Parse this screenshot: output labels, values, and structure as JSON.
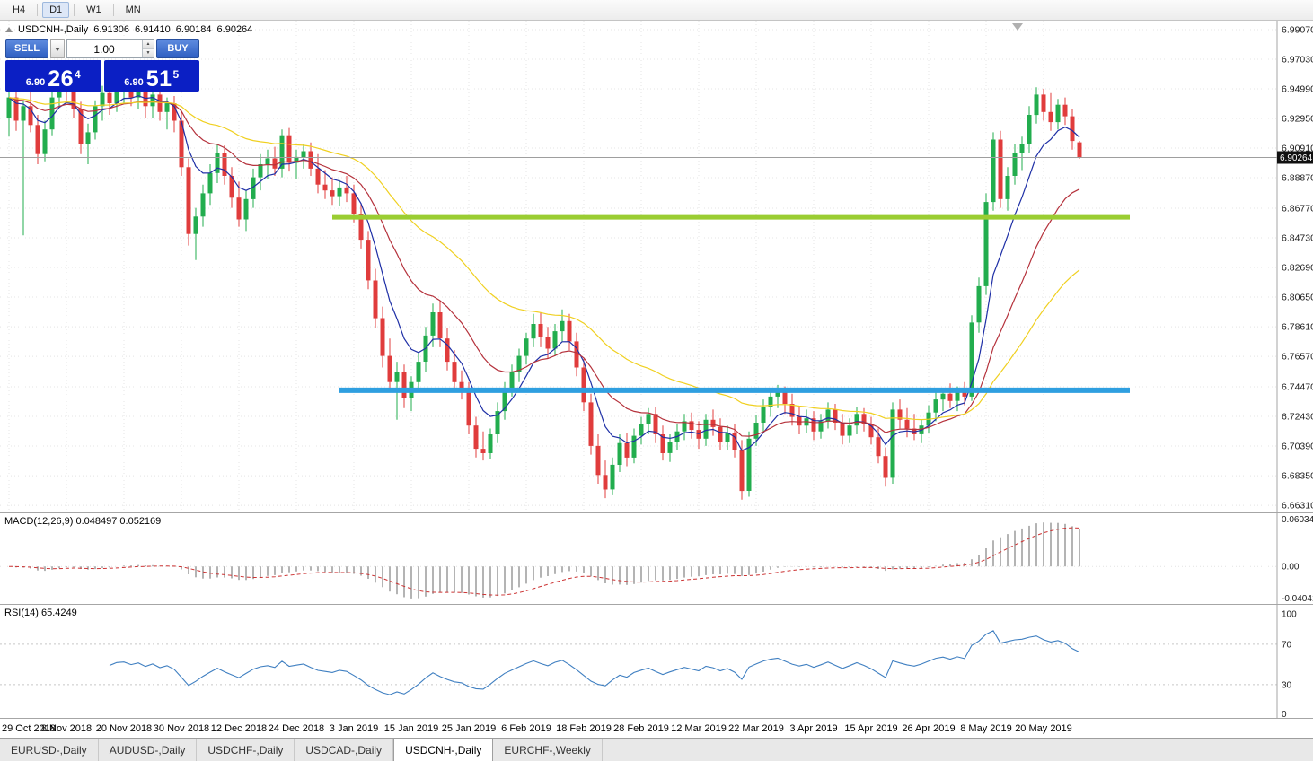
{
  "toolbar": {
    "periods": [
      {
        "label": "H4",
        "active": false
      },
      {
        "label": "D1",
        "active": true
      },
      {
        "label": "W1",
        "active": false
      },
      {
        "label": "MN",
        "active": false
      }
    ]
  },
  "chart_header": {
    "symbol_period": "USDCNH-,Daily",
    "open": "6.91306",
    "high": "6.91410",
    "low": "6.90184",
    "close": "6.90264"
  },
  "trade_panel": {
    "sell_label": "SELL",
    "buy_label": "BUY",
    "volume": "1.00",
    "spinner_up": "▲",
    "spinner_down": "▼",
    "sell_price_small": "6.90",
    "sell_price_big": "26",
    "sell_price_sup": "4",
    "buy_price_small": "6.90",
    "buy_price_big": "51",
    "buy_price_sup": "5",
    "panel_blue": "#0b1fc4",
    "button_blue": "#2f5fc2"
  },
  "price_axis_labels": [
    "6.99070",
    "6.97030",
    "6.94990",
    "6.92950",
    "6.90910",
    "6.88870",
    "6.86770",
    "6.84730",
    "6.82690",
    "6.80650",
    "6.78610",
    "6.76570",
    "6.74470",
    "6.72430",
    "6.70390",
    "6.68350",
    "6.66310"
  ],
  "current_price_label": "6.90264",
  "indicator_macd": {
    "label": "MACD(12,26,9) 0.048497 0.052169",
    "axis_labels": [
      "0.060342",
      "0.00",
      "-0.040415"
    ]
  },
  "indicator_rsi": {
    "label": "RSI(14) 65.4249",
    "axis_labels": [
      "100",
      "70",
      "30",
      "0"
    ]
  },
  "time_axis_labels": [
    "29 Oct 2018",
    "8 Nov 2018",
    "20 Nov 2018",
    "30 Nov 2018",
    "12 Dec 2018",
    "24 Dec 2018",
    "3 Jan 2019",
    "15 Jan 2019",
    "25 Jan 2019",
    "6 Feb 2019",
    "18 Feb 2019",
    "28 Feb 2019",
    "12 Mar 2019",
    "22 Mar 2019",
    "3 Apr 2019",
    "15 Apr 2019",
    "26 Apr 2019",
    "8 May 2019",
    "20 May 2019"
  ],
  "tabs": [
    {
      "label": "EURUSD-,Daily",
      "active": false
    },
    {
      "label": "AUDUSD-,Daily",
      "active": false
    },
    {
      "label": "USDCHF-,Daily",
      "active": false
    },
    {
      "label": "USDCAD-,Daily",
      "active": false
    },
    {
      "label": "USDCNH-,Daily",
      "active": true
    },
    {
      "label": "EURCHF-,Weekly",
      "active": false
    }
  ],
  "chart_data": {
    "type": "candlestick",
    "symbol": "USDCNH",
    "timeframe": "Daily",
    "x_label_every_n_bars": 8,
    "price_max": 6.9969,
    "price_min": 6.6582,
    "current_price": 6.90264,
    "candles": [
      [
        6.93,
        6.951,
        6.917,
        6.944
      ],
      [
        6.944,
        6.949,
        6.921,
        6.928
      ],
      [
        6.928,
        6.942,
        6.849,
        6.938
      ],
      [
        6.938,
        6.955,
        6.92,
        6.925
      ],
      [
        6.925,
        6.932,
        6.898,
        6.905
      ],
      [
        6.905,
        6.928,
        6.9,
        6.922
      ],
      [
        6.922,
        6.948,
        6.918,
        6.944
      ],
      [
        6.944,
        6.962,
        6.938,
        6.956
      ],
      [
        6.956,
        6.963,
        6.942,
        6.95
      ],
      [
        6.95,
        6.957,
        6.93,
        6.936
      ],
      [
        6.936,
        6.941,
        6.905,
        6.912
      ],
      [
        6.912,
        6.926,
        6.898,
        6.92
      ],
      [
        6.92,
        6.942,
        6.915,
        6.938
      ],
      [
        6.938,
        6.952,
        6.928,
        6.947
      ],
      [
        6.947,
        6.953,
        6.932,
        6.94
      ],
      [
        6.94,
        6.956,
        6.934,
        6.951
      ],
      [
        6.951,
        6.959,
        6.94,
        6.953
      ],
      [
        6.953,
        6.958,
        6.938,
        6.944
      ],
      [
        6.944,
        6.956,
        6.936,
        6.95
      ],
      [
        6.95,
        6.954,
        6.93,
        6.938
      ],
      [
        6.938,
        6.95,
        6.93,
        6.946
      ],
      [
        6.946,
        6.951,
        6.928,
        6.934
      ],
      [
        6.934,
        6.944,
        6.922,
        6.94
      ],
      [
        6.94,
        6.945,
        6.92,
        6.928
      ],
      [
        6.928,
        6.934,
        6.89,
        6.896
      ],
      [
        6.896,
        6.902,
        6.842,
        6.85
      ],
      [
        6.85,
        6.868,
        6.832,
        6.862
      ],
      [
        6.862,
        6.884,
        6.855,
        6.878
      ],
      [
        6.878,
        6.898,
        6.87,
        6.892
      ],
      [
        6.892,
        6.912,
        6.885,
        6.906
      ],
      [
        6.906,
        6.911,
        6.884,
        6.89
      ],
      [
        6.89,
        6.896,
        6.868,
        6.875
      ],
      [
        6.875,
        6.886,
        6.855,
        6.86
      ],
      [
        6.86,
        6.88,
        6.852,
        6.874
      ],
      [
        6.874,
        6.895,
        6.868,
        6.889
      ],
      [
        6.889,
        6.905,
        6.88,
        6.898
      ],
      [
        6.898,
        6.908,
        6.888,
        6.902
      ],
      [
        6.902,
        6.91,
        6.89,
        6.895
      ],
      [
        6.895,
        6.922,
        6.889,
        6.918
      ],
      [
        6.918,
        6.923,
        6.893,
        6.899
      ],
      [
        6.899,
        6.908,
        6.888,
        6.903
      ],
      [
        6.903,
        6.912,
        6.895,
        6.907
      ],
      [
        6.907,
        6.913,
        6.89,
        6.895
      ],
      [
        6.895,
        6.905,
        6.878,
        6.884
      ],
      [
        6.884,
        6.894,
        6.874,
        6.88
      ],
      [
        6.88,
        6.889,
        6.87,
        6.876
      ],
      [
        6.876,
        6.887,
        6.869,
        6.882
      ],
      [
        6.882,
        6.89,
        6.872,
        6.878
      ],
      [
        6.878,
        6.884,
        6.858,
        6.864
      ],
      [
        6.864,
        6.871,
        6.84,
        6.846
      ],
      [
        6.846,
        6.852,
        6.812,
        6.818
      ],
      [
        6.818,
        6.826,
        6.785,
        6.792
      ],
      [
        6.792,
        6.8,
        6.758,
        6.766
      ],
      [
        6.766,
        6.778,
        6.742,
        6.748
      ],
      [
        6.748,
        6.762,
        6.722,
        6.755
      ],
      [
        6.755,
        6.76,
        6.73,
        6.737
      ],
      [
        6.737,
        6.752,
        6.728,
        6.748
      ],
      [
        6.748,
        6.768,
        6.742,
        6.762
      ],
      [
        6.762,
        6.786,
        6.755,
        6.78
      ],
      [
        6.78,
        6.802,
        6.772,
        6.796
      ],
      [
        6.796,
        6.804,
        6.772,
        6.778
      ],
      [
        6.778,
        6.785,
        6.756,
        6.762
      ],
      [
        6.762,
        6.77,
        6.742,
        6.748
      ],
      [
        6.748,
        6.756,
        6.736,
        6.742
      ],
      [
        6.742,
        6.748,
        6.712,
        6.718
      ],
      [
        6.718,
        6.724,
        6.696,
        6.702
      ],
      [
        6.702,
        6.714,
        6.694,
        6.699
      ],
      [
        6.699,
        6.716,
        6.695,
        6.712
      ],
      [
        6.712,
        6.734,
        6.706,
        6.728
      ],
      [
        6.728,
        6.748,
        6.722,
        6.744
      ],
      [
        6.744,
        6.76,
        6.738,
        6.755
      ],
      [
        6.755,
        6.771,
        6.748,
        6.766
      ],
      [
        6.766,
        6.782,
        6.76,
        6.778
      ],
      [
        6.778,
        6.795,
        6.772,
        6.788
      ],
      [
        6.788,
        6.796,
        6.772,
        6.779
      ],
      [
        6.779,
        6.786,
        6.764,
        6.771
      ],
      [
        6.771,
        6.788,
        6.766,
        6.783
      ],
      [
        6.783,
        6.798,
        6.776,
        6.79
      ],
      [
        6.79,
        6.795,
        6.77,
        6.776
      ],
      [
        6.776,
        6.782,
        6.752,
        6.758
      ],
      [
        6.758,
        6.764,
        6.728,
        6.734
      ],
      [
        6.734,
        6.74,
        6.698,
        6.704
      ],
      [
        6.704,
        6.712,
        6.678,
        6.684
      ],
      [
        6.684,
        6.694,
        6.668,
        6.674
      ],
      [
        6.674,
        6.696,
        6.67,
        6.691
      ],
      [
        6.691,
        6.712,
        6.686,
        6.706
      ],
      [
        6.706,
        6.713,
        6.69,
        6.696
      ],
      [
        6.696,
        6.716,
        6.692,
        6.711
      ],
      [
        6.711,
        6.724,
        6.705,
        6.719
      ],
      [
        6.719,
        6.73,
        6.712,
        6.726
      ],
      [
        6.726,
        6.731,
        6.706,
        6.712
      ],
      [
        6.712,
        6.718,
        6.694,
        6.699
      ],
      [
        6.699,
        6.712,
        6.693,
        6.707
      ],
      [
        6.707,
        6.719,
        6.701,
        6.714
      ],
      [
        6.714,
        6.726,
        6.708,
        6.721
      ],
      [
        6.721,
        6.727,
        6.709,
        6.715
      ],
      [
        6.715,
        6.721,
        6.702,
        6.709
      ],
      [
        6.709,
        6.726,
        6.704,
        6.722
      ],
      [
        6.722,
        6.729,
        6.711,
        6.717
      ],
      [
        6.717,
        6.723,
        6.701,
        6.707
      ],
      [
        6.707,
        6.718,
        6.701,
        6.713
      ],
      [
        6.713,
        6.719,
        6.696,
        6.701
      ],
      [
        6.701,
        6.708,
        6.667,
        6.673
      ],
      [
        6.673,
        6.714,
        6.669,
        6.709
      ],
      [
        6.709,
        6.725,
        6.704,
        6.72
      ],
      [
        6.72,
        6.736,
        6.714,
        6.731
      ],
      [
        6.731,
        6.742,
        6.724,
        6.738
      ],
      [
        6.738,
        6.746,
        6.73,
        6.742
      ],
      [
        6.742,
        6.745,
        6.726,
        6.733
      ],
      [
        6.733,
        6.74,
        6.718,
        6.724
      ],
      [
        6.724,
        6.731,
        6.712,
        6.718
      ],
      [
        6.718,
        6.729,
        6.713,
        6.723
      ],
      [
        6.723,
        6.728,
        6.708,
        6.714
      ],
      [
        6.714,
        6.726,
        6.709,
        6.721
      ],
      [
        6.721,
        6.734,
        6.716,
        6.729
      ],
      [
        6.729,
        6.733,
        6.715,
        6.72
      ],
      [
        6.72,
        6.726,
        6.705,
        6.711
      ],
      [
        6.711,
        6.723,
        6.706,
        6.718
      ],
      [
        6.718,
        6.731,
        6.712,
        6.726
      ],
      [
        6.726,
        6.73,
        6.714,
        6.719
      ],
      [
        6.719,
        6.724,
        6.705,
        6.71
      ],
      [
        6.71,
        6.716,
        6.692,
        6.697
      ],
      [
        6.697,
        6.703,
        6.676,
        6.682
      ],
      [
        6.682,
        6.734,
        6.678,
        6.729
      ],
      [
        6.729,
        6.736,
        6.716,
        6.722
      ],
      [
        6.722,
        6.73,
        6.71,
        6.716
      ],
      [
        6.716,
        6.726,
        6.708,
        6.712
      ],
      [
        6.712,
        6.722,
        6.706,
        6.718
      ],
      [
        6.718,
        6.732,
        6.713,
        6.727
      ],
      [
        6.727,
        6.741,
        6.721,
        6.736
      ],
      [
        6.736,
        6.744,
        6.728,
        6.74
      ],
      [
        6.74,
        6.747,
        6.73,
        6.735
      ],
      [
        6.735,
        6.745,
        6.728,
        6.742
      ],
      [
        6.742,
        6.748,
        6.732,
        6.738
      ],
      [
        6.738,
        6.794,
        6.735,
        6.789
      ],
      [
        6.789,
        6.82,
        6.782,
        6.814
      ],
      [
        6.814,
        6.878,
        6.808,
        6.872
      ],
      [
        6.872,
        6.92,
        6.866,
        6.915
      ],
      [
        6.915,
        6.921,
        6.868,
        6.874
      ],
      [
        6.874,
        6.896,
        6.866,
        6.89
      ],
      [
        6.89,
        6.912,
        6.884,
        6.906
      ],
      [
        6.906,
        6.917,
        6.894,
        6.912
      ],
      [
        6.912,
        6.938,
        6.906,
        6.932
      ],
      [
        6.932,
        6.951,
        6.926,
        6.946
      ],
      [
        6.946,
        6.95,
        6.928,
        6.934
      ],
      [
        6.934,
        6.947,
        6.921,
        6.927
      ],
      [
        6.927,
        6.943,
        6.922,
        6.939
      ],
      [
        6.939,
        6.944,
        6.925,
        6.931
      ],
      [
        6.931,
        6.936,
        6.908,
        6.914
      ],
      [
        6.9131,
        6.9141,
        6.9018,
        6.9026
      ]
    ],
    "moving_averages": [
      {
        "period": 7,
        "method": "ema",
        "color": "#1e2fa6"
      },
      {
        "period": 18,
        "method": "ema",
        "color": "#b5323c"
      },
      {
        "period": 40,
        "method": "ema",
        "color": "#f0d020"
      }
    ],
    "horizontal_lines": [
      {
        "price": 6.8615,
        "color": "#9acd32",
        "width": 5,
        "from_bar": 45,
        "to_bar": 156
      },
      {
        "price": 6.7423,
        "color": "#2f9fe0",
        "width": 6,
        "from_bar": 46,
        "to_bar": 156
      }
    ],
    "macd": {
      "fast": 12,
      "slow": 26,
      "signal": 9,
      "value": 0.048497,
      "signal_value": 0.052169,
      "scale_max": 0.068,
      "scale_min": -0.048
    },
    "rsi": {
      "period": 14,
      "value": 65.4249,
      "scale_max": 109,
      "scale_min": -3,
      "levels": [
        70,
        30
      ]
    },
    "colors": {
      "up": "#22ad4e",
      "down": "#e03c3c",
      "grid": "#e4e4e4",
      "axis_text": "#1a1a1a",
      "price_line": "#9e9e9e",
      "macd_hist": "#b4b4b4",
      "macd_signal": "#cc3333",
      "rsi_line": "#3f7fc1",
      "levels": "#c8c8c8"
    }
  }
}
